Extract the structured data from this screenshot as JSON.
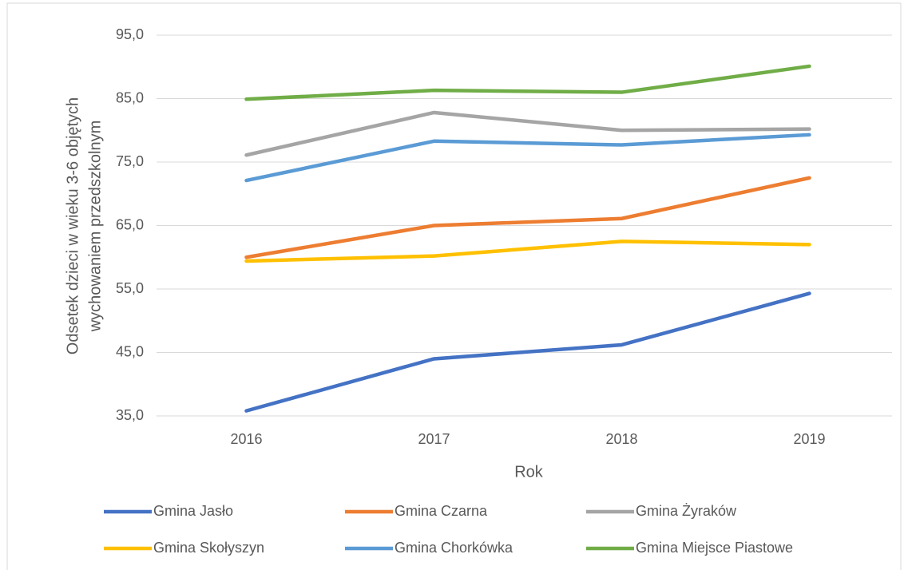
{
  "chart_data": {
    "type": "line",
    "x_label": "Rok",
    "y_label": [
      "Odsetek dzieci w wieku 3-6 objętych",
      "wychowaniem przedszkolnym"
    ],
    "categories": [
      "2016",
      "2017",
      "2018",
      "2019"
    ],
    "series": [
      {
        "name": "Gmina Jasło",
        "color": "#4472c4",
        "values": [
          35.8,
          44.0,
          46.2,
          54.3
        ]
      },
      {
        "name": "Gmina Czarna",
        "color": "#ed7d31",
        "values": [
          60.0,
          65.0,
          66.1,
          72.5
        ]
      },
      {
        "name": "Gmina Żyraków",
        "color": "#a5a5a5",
        "values": [
          76.1,
          82.8,
          80.0,
          80.2
        ]
      },
      {
        "name": "Gmina Skołyszyn",
        "color": "#ffc000",
        "values": [
          59.4,
          60.2,
          62.5,
          62.0
        ]
      },
      {
        "name": "Gmina Chorkówka",
        "color": "#5b9bd5",
        "values": [
          72.1,
          78.3,
          77.7,
          79.3
        ]
      },
      {
        "name": "Gmina Miejsce Piastowe",
        "color": "#70ad47",
        "values": [
          84.9,
          86.3,
          86.0,
          90.1
        ]
      }
    ],
    "ylim": [
      35,
      95
    ],
    "yticks": [
      {
        "value": 35,
        "label": "35,0"
      },
      {
        "value": 45,
        "label": "45,0"
      },
      {
        "value": 55,
        "label": "55,0"
      },
      {
        "value": 65,
        "label": "65,0"
      },
      {
        "value": 75,
        "label": "75,0"
      },
      {
        "value": 85,
        "label": "85,0"
      },
      {
        "value": 95,
        "label": "95,0"
      }
    ],
    "grid": true,
    "legend": "bottom"
  }
}
